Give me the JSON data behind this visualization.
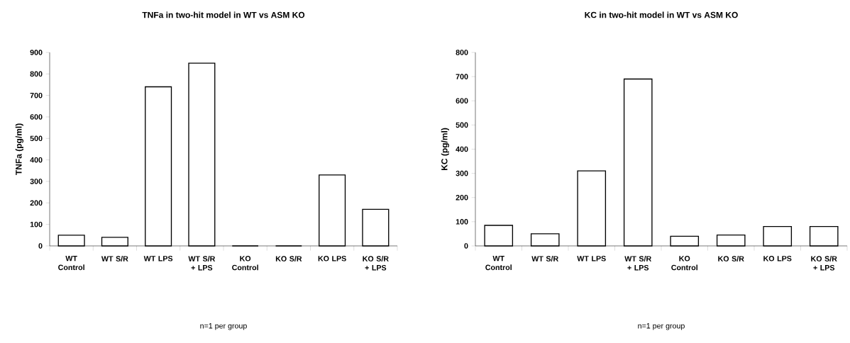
{
  "chart_data": [
    {
      "type": "bar",
      "title": "TNFa in two-hit model in WT vs ASM KO",
      "ylabel": "TNFa (pg/ml)",
      "categories": [
        "WT Control",
        "WT S/R",
        "WT LPS",
        "WT S/R + LPS",
        "KO Control",
        "KO S/R",
        "KO LPS",
        "KO S/R + LPS"
      ],
      "values": [
        50,
        40,
        740,
        850,
        0,
        0,
        330,
        170
      ],
      "color": "#000000",
      "ylim": [
        0,
        900
      ],
      "yticks": [
        0,
        100,
        200,
        300,
        400,
        500,
        600,
        700,
        800,
        900
      ],
      "grid": false,
      "annotations": [
        "n=1 per group"
      ]
    },
    {
      "type": "bar",
      "title": "KC in two-hit model in WT vs ASM KO",
      "ylabel": "KC (pg/ml)",
      "categories": [
        "WT Control",
        "WT S/R",
        "WT LPS",
        "WT S/R + LPS",
        "KO Control",
        "KO S/R",
        "KO LPS",
        "KO S/R + LPS"
      ],
      "values": [
        85,
        50,
        310,
        690,
        40,
        45,
        80,
        80
      ],
      "color": "#000000",
      "ylim": [
        0,
        800
      ],
      "yticks": [
        0,
        100,
        200,
        300,
        400,
        500,
        600,
        700,
        800
      ],
      "grid": false,
      "annotations": [
        "n=1 per group"
      ]
    }
  ]
}
